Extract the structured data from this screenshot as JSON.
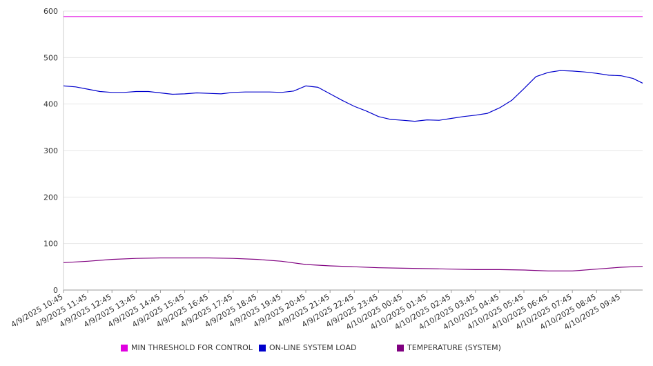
{
  "chart_data": {
    "type": "line",
    "title": "",
    "xlabel": "",
    "ylabel": "",
    "ylim": [
      0,
      600
    ],
    "yticks": [
      0,
      100,
      200,
      300,
      400,
      500,
      600
    ],
    "grid": "horizontal",
    "legend_position": "bottom",
    "x_tick_labels": [
      "4/9/2025 10:45",
      "4/9/2025 11:45",
      "4/9/2025 12:45",
      "4/9/2025 13:45",
      "4/9/2025 14:45",
      "4/9/2025 15:45",
      "4/9/2025 16:45",
      "4/9/2025 17:45",
      "4/9/2025 18:45",
      "4/9/2025 19:45",
      "4/9/2025 20:45",
      "4/9/2025 21:45",
      "4/9/2025 22:45",
      "4/9/2025 23:45",
      "4/10/2025 00:45",
      "4/10/2025 01:45",
      "4/10/2025 02:45",
      "4/10/2025 03:45",
      "4/10/2025 04:45",
      "4/10/2025 05:45",
      "4/10/2025 06:45",
      "4/10/2025 07:45",
      "4/10/2025 08:45",
      "4/10/2025 09:45"
    ],
    "x_tick_hours": [
      0,
      1,
      2,
      3,
      4,
      5,
      6,
      7,
      8,
      9,
      10,
      11,
      12,
      13,
      14,
      15,
      16,
      17,
      18,
      19,
      20,
      21,
      22,
      23
    ],
    "x_range_hours": [
      0,
      23.9
    ],
    "series": [
      {
        "name": "MIN THRESHOLD FOR CONTROL",
        "color": "#e000e0",
        "x": [
          0,
          23.9
        ],
        "values": [
          588,
          588
        ]
      },
      {
        "name": "ON-LINE SYSTEM LOAD",
        "color": "#0000cc",
        "x": [
          0,
          0.5,
          1,
          1.5,
          2,
          2.5,
          3,
          3.5,
          4,
          4.5,
          5,
          5.5,
          6,
          6.5,
          7,
          7.5,
          8,
          8.5,
          9,
          9.5,
          10,
          10.5,
          11,
          11.5,
          12,
          12.5,
          13,
          13.5,
          14,
          14.5,
          15,
          15.5,
          16,
          16.5,
          17,
          17.5,
          18,
          18.5,
          19,
          19.5,
          20,
          20.5,
          21,
          21.5,
          22,
          22.5,
          23,
          23.5,
          23.9
        ],
        "values": [
          439,
          437,
          432,
          427,
          425,
          425,
          427,
          427,
          424,
          421,
          422,
          424,
          423,
          422,
          425,
          426,
          426,
          426,
          425,
          428,
          439,
          436,
          422,
          408,
          395,
          385,
          373,
          367,
          365,
          363,
          366,
          365,
          369,
          373,
          376,
          380,
          392,
          408,
          433,
          459,
          468,
          472,
          471,
          469,
          466,
          462,
          461,
          455,
          445
        ]
      },
      {
        "name": "TEMPERATURE (SYSTEM)",
        "color": "#800080",
        "x": [
          0,
          1,
          2,
          3,
          4,
          5,
          6,
          7,
          8,
          9,
          10,
          11,
          12,
          13,
          14,
          15,
          16,
          17,
          18,
          19,
          20,
          21,
          22,
          23,
          23.9
        ],
        "values": [
          59,
          62,
          66,
          68,
          69,
          69,
          69,
          68,
          66,
          62,
          55,
          52,
          50,
          48,
          47,
          46,
          45,
          44,
          44,
          43,
          41,
          41,
          45,
          49,
          51
        ]
      }
    ]
  }
}
